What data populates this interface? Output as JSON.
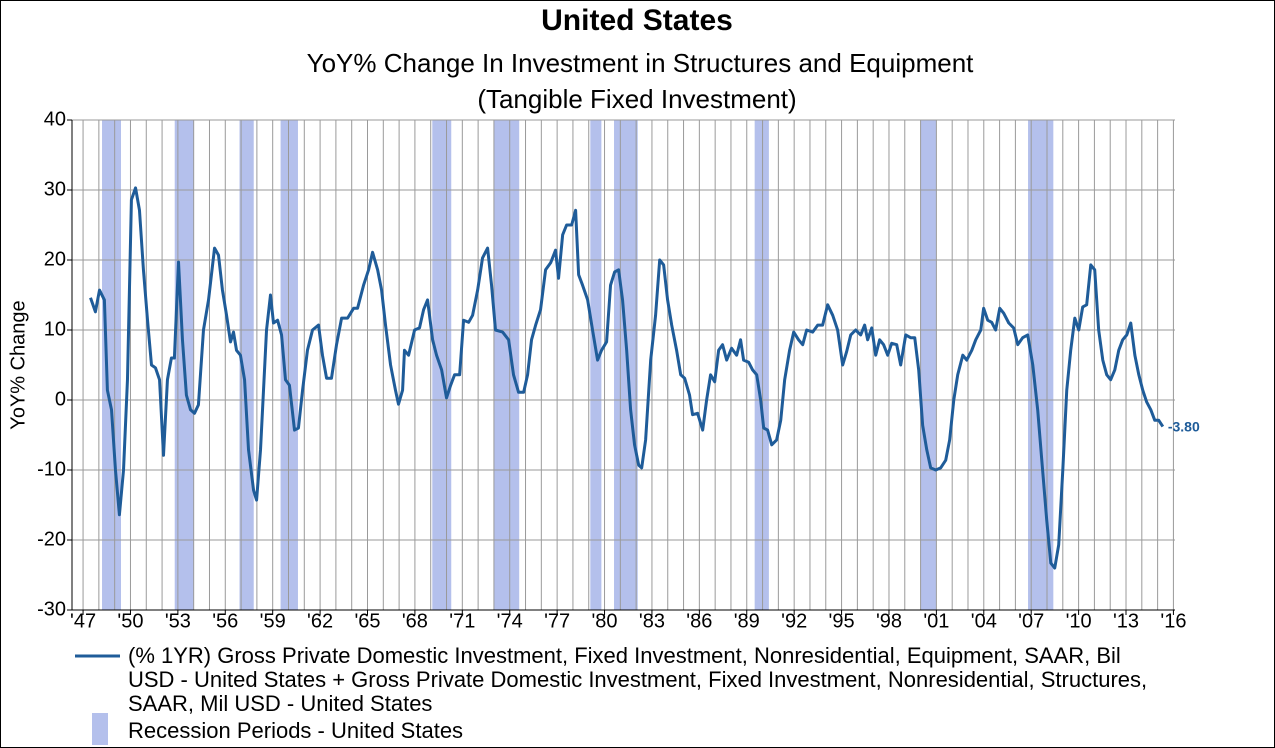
{
  "chart_data": {
    "type": "line",
    "title": "United States",
    "subtitle": [
      "YoY% Change In Investment in Structures and Equipment",
      "(Tangible Fixed Investment)"
    ],
    "y_label": "YoY% Change",
    "xlim": [
      1946.3,
      2016.1
    ],
    "ylim": [
      -30,
      40
    ],
    "yticks": [
      -30,
      -20,
      -10,
      0,
      10,
      20,
      30,
      40
    ],
    "xticks": [
      {
        "value": 1947,
        "label": "'47"
      },
      {
        "value": 1950,
        "label": "'50"
      },
      {
        "value": 1953,
        "label": "'53"
      },
      {
        "value": 1956,
        "label": "'56"
      },
      {
        "value": 1959,
        "label": "'59"
      },
      {
        "value": 1962,
        "label": "'62"
      },
      {
        "value": 1965,
        "label": "'65"
      },
      {
        "value": 1968,
        "label": "'68"
      },
      {
        "value": 1971,
        "label": "'71"
      },
      {
        "value": 1974,
        "label": "'74"
      },
      {
        "value": 1977,
        "label": "'77"
      },
      {
        "value": 1980,
        "label": "'80"
      },
      {
        "value": 1983,
        "label": "'83"
      },
      {
        "value": 1986,
        "label": "'86"
      },
      {
        "value": 1989,
        "label": "'89"
      },
      {
        "value": 1992,
        "label": "'92"
      },
      {
        "value": 1995,
        "label": "'95"
      },
      {
        "value": 1998,
        "label": "'98"
      },
      {
        "value": 2001,
        "label": "'01"
      },
      {
        "value": 2004,
        "label": "'04"
      },
      {
        "value": 2007,
        "label": "'07"
      },
      {
        "value": 2010,
        "label": "'10"
      },
      {
        "value": 2013,
        "label": "'13"
      },
      {
        "value": 2016,
        "label": "'16"
      }
    ],
    "xminorticks": [
      1947,
      1948,
      1949,
      1950,
      1951,
      1952,
      1953,
      1954,
      1955,
      1956,
      1957,
      1958,
      1959,
      1960,
      1961,
      1962,
      1963,
      1964,
      1965,
      1966,
      1967,
      1968,
      1969,
      1970,
      1971,
      1972,
      1973,
      1974,
      1975,
      1976,
      1977,
      1978,
      1979,
      1980,
      1981,
      1982,
      1983,
      1984,
      1985,
      1986,
      1987,
      1988,
      1989,
      1990,
      1991,
      1992,
      1993,
      1994,
      1995,
      1996,
      1997,
      1998,
      1999,
      2000,
      2001,
      2002,
      2003,
      2004,
      2005,
      2006,
      2007,
      2008,
      2009,
      2010,
      2011,
      2012,
      2013,
      2014,
      2015,
      2016
    ],
    "grid": true,
    "series": [
      {
        "name": "(% 1YR) Gross Private Domestic Investment, Fixed Investment, Nonresidential, Equipment, SAAR, Bil USD - United States + Gross Private Domestic Investment, Fixed Investment, Nonresidential, Structures, SAAR, Mil USD - United States",
        "color": "#1f5c99",
        "x": [
          1947.47,
          1947.78,
          1948.04,
          1948.35,
          1948.54,
          1948.8,
          1949.05,
          1949.3,
          1949.56,
          1949.81,
          1950.06,
          1950.32,
          1950.57,
          1950.82,
          1951.08,
          1951.33,
          1951.58,
          1951.84,
          1952.09,
          1952.34,
          1952.59,
          1952.78,
          1953.04,
          1953.29,
          1953.54,
          1953.8,
          1954.05,
          1954.3,
          1954.62,
          1954.94,
          1955.32,
          1955.57,
          1955.82,
          1956.08,
          1956.33,
          1956.52,
          1956.71,
          1956.96,
          1957.22,
          1957.47,
          1957.79,
          1957.98,
          1958.23,
          1958.61,
          1958.86,
          1959.05,
          1959.31,
          1959.56,
          1959.81,
          1960.06,
          1960.38,
          1960.63,
          1960.89,
          1961.2,
          1961.52,
          1961.9,
          1962.15,
          1962.41,
          1962.72,
          1963.04,
          1963.36,
          1963.74,
          1964.12,
          1964.37,
          1964.75,
          1965.07,
          1965.32,
          1965.64,
          1965.89,
          1966.14,
          1966.46,
          1966.77,
          1966.96,
          1967.22,
          1967.34,
          1967.6,
          1967.98,
          1968.29,
          1968.55,
          1968.8,
          1969.12,
          1969.37,
          1969.69,
          1970,
          1970.26,
          1970.51,
          1970.83,
          1971.08,
          1971.4,
          1971.65,
          1971.97,
          1972.28,
          1972.6,
          1972.85,
          1973.1,
          1973.55,
          1973.93,
          1974.24,
          1974.56,
          1974.88,
          1975.13,
          1975.38,
          1975.64,
          1975.95,
          1976.27,
          1976.59,
          1976.9,
          1977.09,
          1977.35,
          1977.6,
          1977.92,
          1978.17,
          1978.36,
          1978.61,
          1978.93,
          1979.24,
          1979.56,
          1979.81,
          1980.13,
          1980.38,
          1980.64,
          1980.89,
          1981.14,
          1981.4,
          1981.65,
          1981.9,
          1982.16,
          1982.35,
          1982.6,
          1982.92,
          1983.23,
          1983.49,
          1983.74,
          1983.99,
          1984.25,
          1984.56,
          1984.82,
          1985.07,
          1985.38,
          1985.57,
          1985.89,
          1986.21,
          1986.46,
          1986.71,
          1986.97,
          1987.22,
          1987.47,
          1987.73,
          1988.04,
          1988.36,
          1988.61,
          1988.8,
          1989.12,
          1989.37,
          1989.63,
          1989.88,
          1990.07,
          1990.32,
          1990.58,
          1990.89,
          1991.15,
          1991.4,
          1991.71,
          1991.97,
          1992.28,
          1992.54,
          1992.79,
          1993.17,
          1993.49,
          1993.8,
          1994.12,
          1994.44,
          1994.75,
          1995.07,
          1995.32,
          1995.58,
          1995.89,
          1996.21,
          1996.46,
          1996.65,
          1996.91,
          1997.16,
          1997.41,
          1997.66,
          1997.92,
          1998.17,
          1998.49,
          1998.74,
          1999.06,
          1999.37,
          1999.63,
          1999.88,
          2000.13,
          2000.39,
          2000.64,
          2000.96,
          2001.27,
          2001.59,
          2001.84,
          2002.1,
          2002.35,
          2002.67,
          2002.92,
          2003.24,
          2003.49,
          2003.81,
          2003.99,
          2004.25,
          2004.5,
          2004.75,
          2005.01,
          2005.26,
          2005.58,
          2005.89,
          2006.15,
          2006.46,
          2006.78,
          2007.1,
          2007.41,
          2007.67,
          2007.98,
          2008.24,
          2008.49,
          2008.74,
          2009,
          2009.25,
          2009.5,
          2009.76,
          2010.01,
          2010.26,
          2010.51,
          2010.77,
          2011.02,
          2011.27,
          2011.53,
          2011.78,
          2012.03,
          2012.29,
          2012.54,
          2012.79,
          2013.05,
          2013.3,
          2013.56,
          2013.81,
          2014.06,
          2014.31,
          2014.57,
          2014.82,
          2015.07,
          2015.33
        ],
        "values": [
          14.6,
          12.6,
          15.7,
          14.3,
          1.4,
          -1.4,
          -10,
          -16.4,
          -10,
          2.9,
          28.6,
          30.3,
          27.1,
          18.6,
          11.4,
          5,
          4.6,
          2.9,
          -7.9,
          2.9,
          6,
          6,
          19.7,
          8.6,
          0.7,
          -1.4,
          -1.9,
          -0.7,
          10,
          14.3,
          21.7,
          20.7,
          15.7,
          12.1,
          8.3,
          9.7,
          7.1,
          6.4,
          2.9,
          -7.1,
          -12.9,
          -14.3,
          -7.1,
          10,
          15,
          11,
          11.4,
          9.3,
          2.9,
          2.1,
          -4.3,
          -4,
          1.4,
          7.1,
          10,
          10.7,
          6.4,
          3.1,
          3.1,
          7.9,
          11.7,
          11.7,
          13.1,
          13.1,
          16.4,
          18.6,
          21.1,
          18.6,
          15.7,
          10.7,
          5,
          1.4,
          -0.6,
          1.4,
          7.1,
          6.4,
          10,
          10.3,
          12.9,
          14.3,
          8.6,
          6.4,
          4.3,
          0.3,
          2.1,
          3.6,
          3.6,
          11.4,
          11.1,
          12.1,
          15.7,
          20.3,
          21.7,
          16.4,
          10,
          9.7,
          8.6,
          3.6,
          1.1,
          1.1,
          3.6,
          8.6,
          10.7,
          12.9,
          18.6,
          19.6,
          21.4,
          17.4,
          23.6,
          25,
          25,
          27.1,
          17.9,
          16.4,
          14.3,
          10,
          5.7,
          7.1,
          8.3,
          16.4,
          18.3,
          18.6,
          14.3,
          7.1,
          -1.4,
          -6.4,
          -9.3,
          -9.7,
          -5.7,
          5.7,
          12.1,
          20,
          19.3,
          14.3,
          10.7,
          7.1,
          3.6,
          3.1,
          0.7,
          -2.1,
          -1.9,
          -4.3,
          0,
          3.6,
          2.6,
          7.1,
          7.9,
          5.7,
          7.4,
          6.4,
          8.6,
          5.7,
          5.4,
          4.3,
          3.6,
          0,
          -4,
          -4.3,
          -6.4,
          -5.7,
          -2.9,
          2.9,
          7.1,
          9.7,
          8.6,
          7.9,
          10,
          9.7,
          10.7,
          10.7,
          13.6,
          12.1,
          10,
          5,
          6.9,
          9.3,
          10,
          9.3,
          10.7,
          8.6,
          10.3,
          6.4,
          8.6,
          7.9,
          6.4,
          8.1,
          7.9,
          5,
          9.3,
          8.9,
          8.9,
          4.3,
          -3.6,
          -7.1,
          -9.7,
          -10,
          -9.7,
          -8.6,
          -5.7,
          0,
          3.6,
          6.4,
          5.7,
          7.1,
          8.6,
          10,
          13.1,
          11.4,
          11.1,
          10,
          13.1,
          12.4,
          11,
          10.3,
          7.9,
          8.9,
          9.3,
          5,
          -1.4,
          -8.6,
          -17.1,
          -23.3,
          -24,
          -20.7,
          -10,
          1.4,
          7.1,
          11.7,
          10,
          13.3,
          13.6,
          19.3,
          18.6,
          10,
          5.7,
          3.6,
          2.9,
          4.3,
          7.1,
          8.6,
          9.3,
          11,
          6.4,
          3.6,
          1.4,
          -0.3,
          -1.4,
          -2.9,
          -2.9,
          -3.8
        ],
        "end_label": "-3.80"
      }
    ],
    "recessions": {
      "name": "Recession Periods - United States",
      "color": "#b4c0ec",
      "periods": [
        [
          1948.2,
          1949.4
        ],
        [
          1952.8,
          1954.0
        ],
        [
          1956.9,
          1957.8
        ],
        [
          1959.5,
          1960.6
        ],
        [
          1969.1,
          1970.3
        ],
        [
          1973.0,
          1974.6
        ],
        [
          1979.1,
          1979.8
        ],
        [
          1980.6,
          1982.1
        ],
        [
          1989.5,
          1990.4
        ],
        [
          2000.0,
          2001.0
        ],
        [
          2006.8,
          2008.4
        ]
      ]
    }
  }
}
